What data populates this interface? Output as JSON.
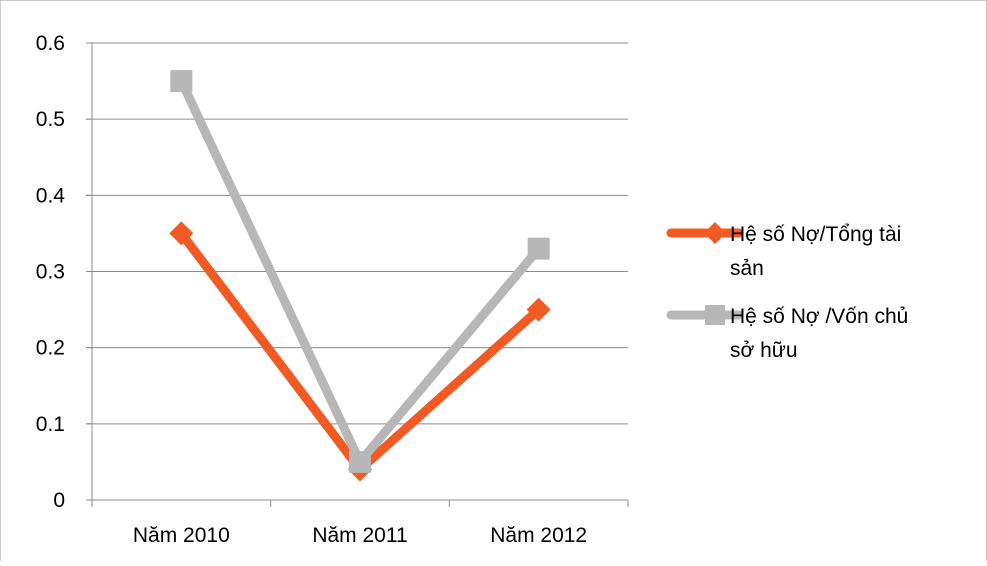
{
  "chart_data": {
    "type": "line",
    "categories": [
      "Năm 2010",
      "Năm 2011",
      "Năm 2012"
    ],
    "series": [
      {
        "name": "Hệ số Nợ/Tổng tài sản",
        "name_lines": [
          "Hệ số Nợ/Tổng tài",
          "sản"
        ],
        "values": [
          0.35,
          0.04,
          0.25
        ],
        "color": "#f15a22",
        "marker": "diamond"
      },
      {
        "name": "Hệ số Nợ /Vốn chủ sở hữu",
        "name_lines": [
          "Hệ số Nợ /Vốn chủ",
          "sở hữu"
        ],
        "values": [
          0.55,
          0.05,
          0.33
        ],
        "color": "#b7b7b7",
        "marker": "square"
      }
    ],
    "yticks": [
      "0",
      "0.1",
      "0.2",
      "0.3",
      "0.4",
      "0.5",
      "0.6"
    ],
    "ylim": [
      0,
      0.6
    ],
    "grid": true,
    "legend_position": "right"
  }
}
